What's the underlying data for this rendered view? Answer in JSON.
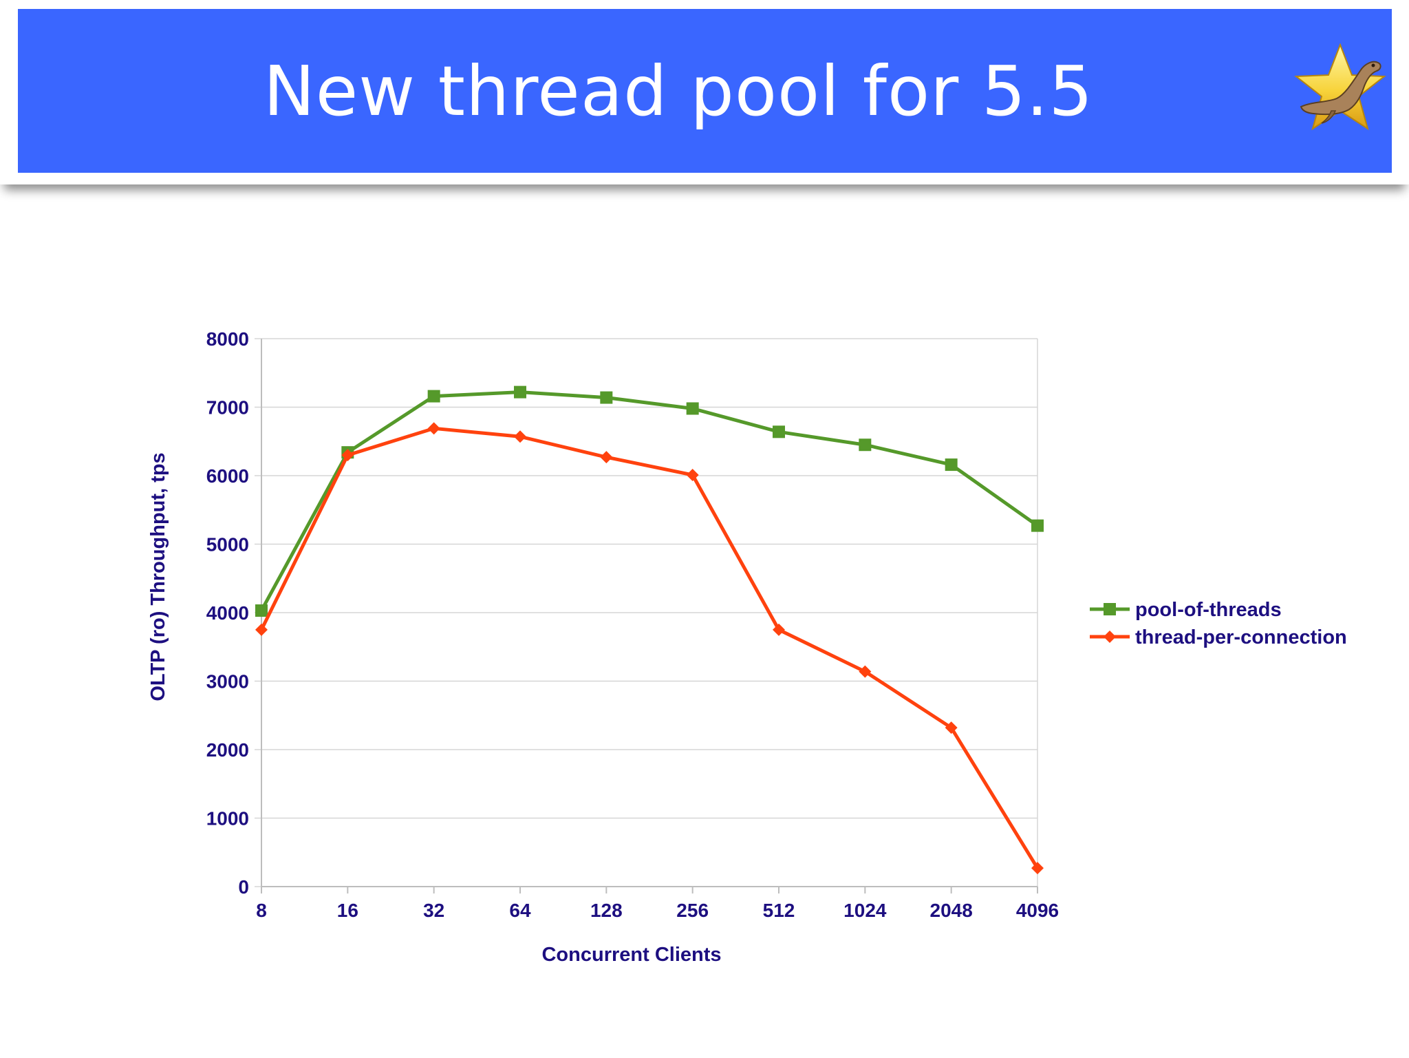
{
  "slide": {
    "title": "New thread pool for 5.5",
    "banner_color": "#3a66ff",
    "logo_icon": "star-seal-logo"
  },
  "chart_data": {
    "type": "line",
    "title": "",
    "xlabel": "Concurrent Clients",
    "ylabel": "OLTP (ro) Throughput, tps",
    "x": [
      "8",
      "16",
      "32",
      "64",
      "128",
      "256",
      "512",
      "1024",
      "2048",
      "4096"
    ],
    "ylim": [
      0,
      8000
    ],
    "yticks": [
      "0",
      "1000",
      "2000",
      "3000",
      "4000",
      "5000",
      "6000",
      "7000",
      "8000"
    ],
    "grid": true,
    "legend_position": "right",
    "series": [
      {
        "name": "pool-of-threads",
        "color": "#55992a",
        "marker": "square",
        "values": [
          4030,
          6340,
          7160,
          7220,
          7140,
          6980,
          6640,
          6450,
          6160,
          5270
        ]
      },
      {
        "name": "thread-per-connection",
        "color": "#ff420e",
        "marker": "diamond",
        "values": [
          3750,
          6300,
          6690,
          6570,
          6270,
          6010,
          3750,
          3140,
          2320,
          270
        ]
      }
    ]
  }
}
